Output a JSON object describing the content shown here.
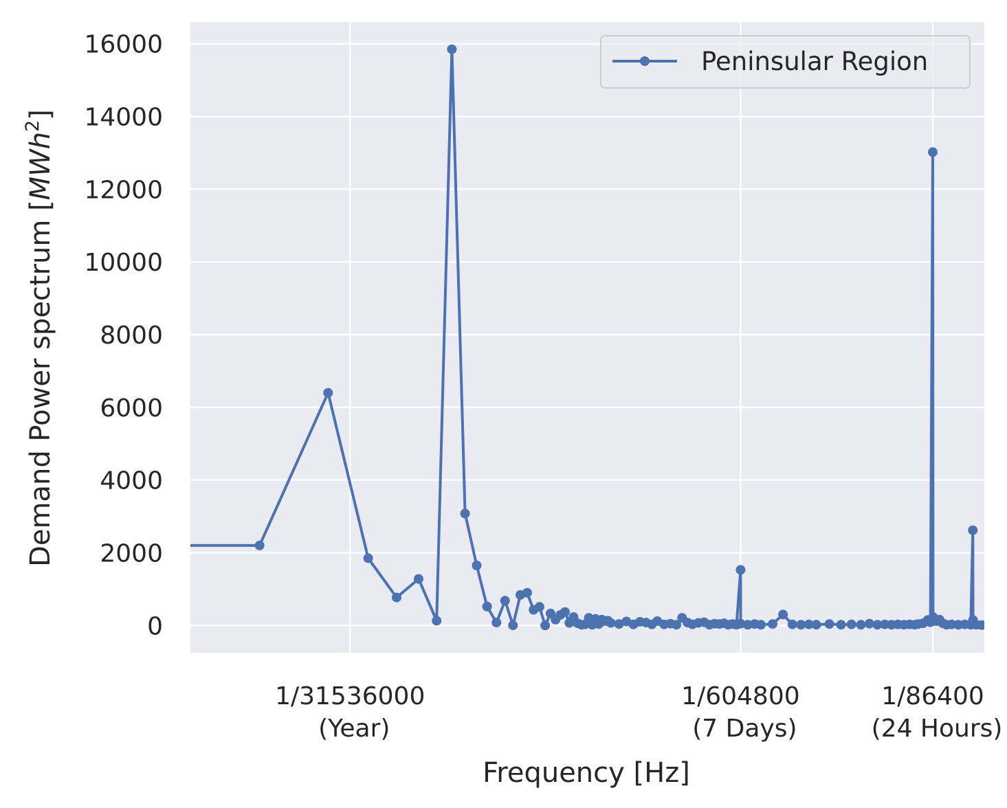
{
  "chart_data": {
    "type": "line",
    "xlabel": "Frequency [Hz]",
    "ylabel_main": "Demand Power spectrum [",
    "ylabel_unit": "MWh",
    "ylabel_sup": "2",
    "ylabel_close": "]",
    "x_scale": "log",
    "xlim": [
      6.3e-09,
      1.95e-05
    ],
    "ylim": [
      -750,
      16600
    ],
    "grid": true,
    "legend_position": "top-right",
    "yticks": [
      {
        "value": 0,
        "label": "0"
      },
      {
        "value": 2000,
        "label": "2000"
      },
      {
        "value": 4000,
        "label": "4000"
      },
      {
        "value": 6000,
        "label": "6000"
      },
      {
        "value": 8000,
        "label": "8000"
      },
      {
        "value": 10000,
        "label": "10000"
      },
      {
        "value": 12000,
        "label": "12000"
      },
      {
        "value": 14000,
        "label": "14000"
      },
      {
        "value": 16000,
        "label": "16000"
      }
    ],
    "xticks": [
      {
        "value": 3.170979e-08,
        "line1": "1/31536000",
        "line2": "(Year)"
      },
      {
        "value": 1.653439e-06,
        "line1": "1/604800",
        "line2": "(7 Days)"
      },
      {
        "value": 1.157407e-05,
        "line1": "1/86400",
        "line2": "(24 Hours)"
      }
    ],
    "series": [
      {
        "name": "Peninsular Region",
        "color": "#4c72b0",
        "points": [
          [
            3.1e-09,
            2200
          ],
          [
            1.27e-08,
            2200
          ],
          [
            2.54e-08,
            6400
          ],
          [
            3.81e-08,
            1850
          ],
          [
            5.08e-08,
            770
          ],
          [
            6.35e-08,
            1280
          ],
          [
            7.62e-08,
            130
          ],
          [
            8.89e-08,
            15850
          ],
          [
            1.016e-07,
            3080
          ],
          [
            1.143e-07,
            1650
          ],
          [
            1.27e-07,
            520
          ],
          [
            1.397e-07,
            80
          ],
          [
            1.524e-07,
            680
          ],
          [
            1.651e-07,
            5
          ],
          [
            1.778e-07,
            840
          ],
          [
            1.905e-07,
            900
          ],
          [
            2.032e-07,
            430
          ],
          [
            2.159e-07,
            510
          ],
          [
            2.286e-07,
            0
          ],
          [
            2.413e-07,
            330
          ],
          [
            2.54e-07,
            160
          ],
          [
            2.667e-07,
            290
          ],
          [
            2.794e-07,
            370
          ],
          [
            2.921e-07,
            70
          ],
          [
            3.048e-07,
            230
          ],
          [
            3.175e-07,
            60
          ],
          [
            3.302e-07,
            20
          ],
          [
            3.429e-07,
            30
          ],
          [
            3.556e-07,
            210
          ],
          [
            3.683e-07,
            20
          ],
          [
            3.81e-07,
            180
          ],
          [
            3.937e-07,
            40
          ],
          [
            4.064e-07,
            160
          ],
          [
            4.191e-07,
            120
          ],
          [
            4.318e-07,
            130
          ],
          [
            4.445e-07,
            70
          ],
          [
            4.826e-07,
            40
          ],
          [
            5.207e-07,
            110
          ],
          [
            5.588e-07,
            30
          ],
          [
            5.969e-07,
            100
          ],
          [
            6.35e-07,
            80
          ],
          [
            6.731e-07,
            30
          ],
          [
            7.112e-07,
            120
          ],
          [
            7.62e-07,
            30
          ],
          [
            8.128e-07,
            50
          ],
          [
            8.636e-07,
            20
          ],
          [
            9.144e-07,
            210
          ],
          [
            9.652e-07,
            80
          ],
          [
            1.016e-06,
            30
          ],
          [
            1.079e-06,
            70
          ],
          [
            1.143e-06,
            90
          ],
          [
            1.206e-06,
            20
          ],
          [
            1.27e-06,
            50
          ],
          [
            1.333e-06,
            40
          ],
          [
            1.397e-06,
            60
          ],
          [
            1.46e-06,
            20
          ],
          [
            1.524e-06,
            40
          ],
          [
            1.587e-06,
            20
          ],
          [
            1.653e-06,
            1530
          ],
          [
            1.654e-06,
            50
          ],
          [
            1.778e-06,
            20
          ],
          [
            1.905e-06,
            40
          ],
          [
            2.032e-06,
            20
          ],
          [
            2.286e-06,
            40
          ],
          [
            2.54e-06,
            300
          ],
          [
            2.794e-06,
            30
          ],
          [
            3.048e-06,
            20
          ],
          [
            3.302e-06,
            30
          ],
          [
            3.556e-06,
            20
          ],
          [
            4.064e-06,
            40
          ],
          [
            4.572e-06,
            20
          ],
          [
            5.08e-06,
            30
          ],
          [
            5.588e-06,
            20
          ],
          [
            6.096e-06,
            50
          ],
          [
            6.604e-06,
            20
          ],
          [
            7.112e-06,
            30
          ],
          [
            7.62e-06,
            20
          ],
          [
            8.128e-06,
            30
          ],
          [
            8.636e-06,
            20
          ],
          [
            9.144e-06,
            30
          ],
          [
            9.652e-06,
            20
          ],
          [
            1e-05,
            40
          ],
          [
            1.05e-05,
            60
          ],
          [
            1.1e-05,
            150
          ],
          [
            1.13e-05,
            90
          ],
          [
            1.157e-05,
            13020
          ],
          [
            1.16e-05,
            230
          ],
          [
            1.2e-05,
            120
          ],
          [
            1.24e-05,
            160
          ],
          [
            1.28e-05,
            60
          ],
          [
            1.33e-05,
            20
          ],
          [
            1.4e-05,
            30
          ],
          [
            1.5e-05,
            20
          ],
          [
            1.6e-05,
            30
          ],
          [
            1.7e-05,
            20
          ],
          [
            1.736e-05,
            2620
          ],
          [
            1.74e-05,
            150
          ],
          [
            1.8e-05,
            20
          ],
          [
            1.9e-05,
            10
          ],
          [
            2e-05,
            10
          ]
        ]
      }
    ]
  }
}
